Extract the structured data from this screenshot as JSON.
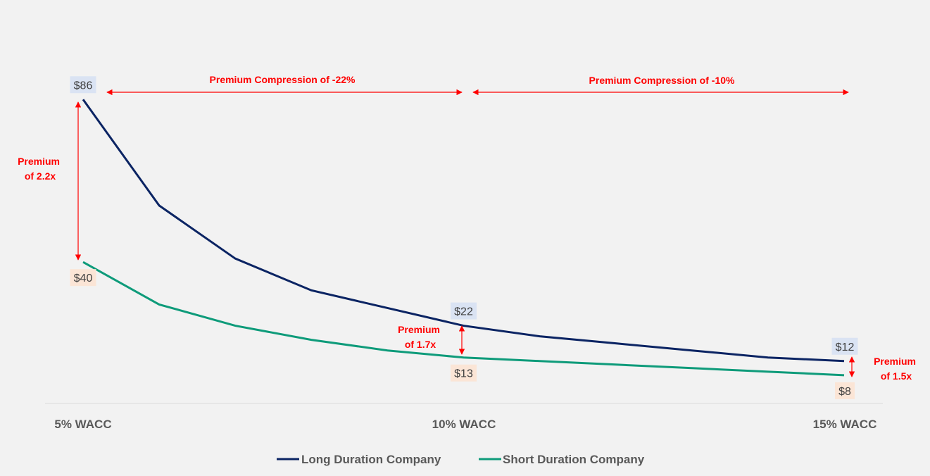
{
  "chart_data": {
    "type": "line",
    "title": "",
    "xlabel": "",
    "ylabel": "",
    "x": [
      "5%",
      "6%",
      "7%",
      "8%",
      "9%",
      "10%",
      "11%",
      "12%",
      "13%",
      "14%",
      "15%"
    ],
    "x_tick_labels": [
      "5% WACC",
      "10% WACC",
      "15% WACC"
    ],
    "ylim": [
      0,
      100
    ],
    "grid": false,
    "legend_position": "bottom",
    "series": [
      {
        "name": "Long Duration Company",
        "color": "#0b2463",
        "label_bg": "#dae3f3",
        "values": [
          86,
          56,
          41,
          32,
          27,
          22,
          19,
          17,
          15,
          13,
          12
        ]
      },
      {
        "name": "Short Duration Company",
        "color": "#0e9b7a",
        "label_bg": "#fbe5d6",
        "values": [
          40,
          28,
          22,
          18,
          15,
          13,
          12,
          11,
          10,
          9,
          8
        ]
      }
    ],
    "data_labels": {
      "long": [
        "$86",
        "$22",
        "$12"
      ],
      "short": [
        "$40",
        "$13",
        "$8"
      ]
    },
    "annotations": {
      "compression_1": "Premium Compression of -22%",
      "compression_2": "Premium Compression of -10%",
      "premium_1": [
        "Premium",
        "of 2.2x"
      ],
      "premium_2": [
        "Premium",
        "of 1.7x"
      ],
      "premium_3": [
        "Premium",
        "of 1.5x"
      ]
    },
    "annotation_color": "#ff0000"
  }
}
